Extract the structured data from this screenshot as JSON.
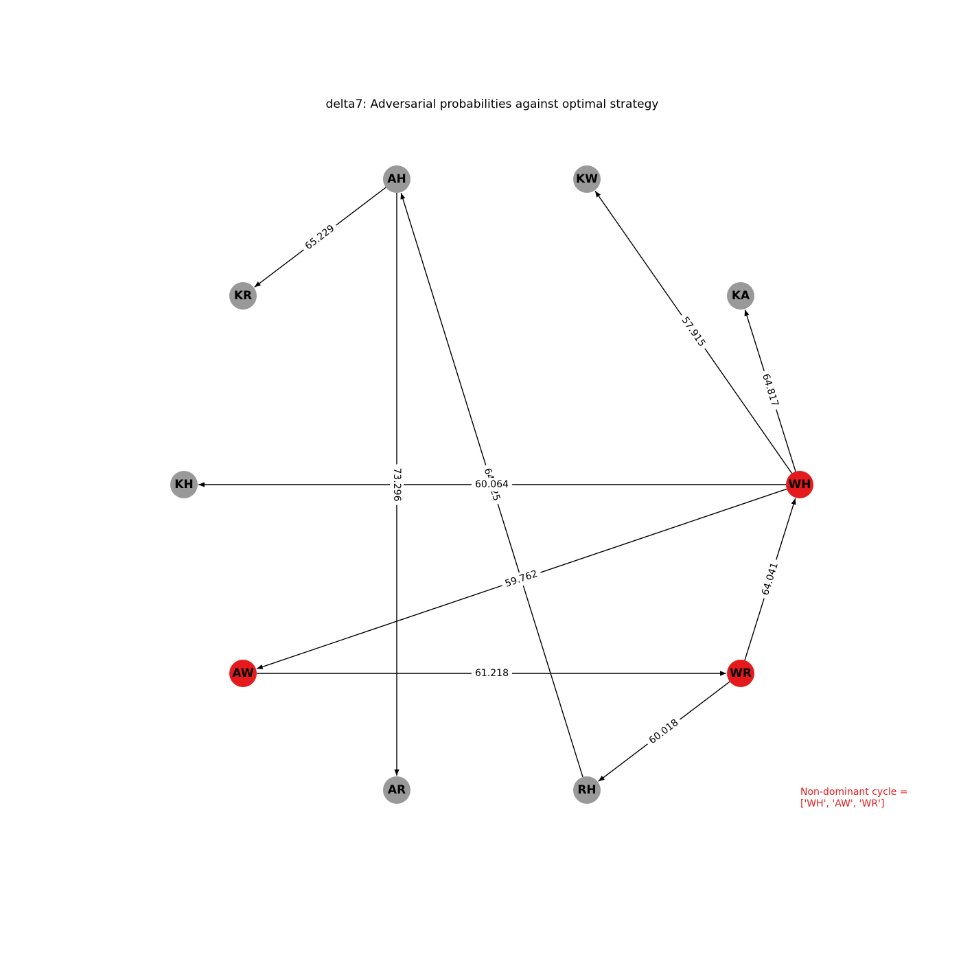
{
  "title": "delta7: Adversarial probabilities against optimal strategy",
  "annotation": {
    "line1": "Non-dominant cycle =",
    "line2": "['WH', 'AW', 'WR']"
  },
  "colors": {
    "default_node": "#999999",
    "cycle_node": "#e41a1c",
    "edge": "#000000",
    "annotation": "#e41a1c"
  },
  "nodes": [
    {
      "id": "AH",
      "in_cycle": false
    },
    {
      "id": "KW",
      "in_cycle": false
    },
    {
      "id": "KR",
      "in_cycle": false
    },
    {
      "id": "KA",
      "in_cycle": false
    },
    {
      "id": "KH",
      "in_cycle": false
    },
    {
      "id": "WH",
      "in_cycle": true
    },
    {
      "id": "AW",
      "in_cycle": true
    },
    {
      "id": "WR",
      "in_cycle": true
    },
    {
      "id": "AR",
      "in_cycle": false
    },
    {
      "id": "RH",
      "in_cycle": false
    }
  ],
  "edges": [
    {
      "source": "AH",
      "target": "KR",
      "label": "65.229"
    },
    {
      "source": "AH",
      "target": "AR",
      "label": "73.296"
    },
    {
      "source": "RH",
      "target": "AH",
      "label": "64.025"
    },
    {
      "source": "WH",
      "target": "KW",
      "label": "57.915"
    },
    {
      "source": "WH",
      "target": "KA",
      "label": "64.817"
    },
    {
      "source": "WH",
      "target": "KH",
      "label": "60.064"
    },
    {
      "source": "WH",
      "target": "AW",
      "label": "59.762"
    },
    {
      "source": "AW",
      "target": "WR",
      "label": "61.218"
    },
    {
      "source": "WR",
      "target": "WH",
      "label": "64.041"
    },
    {
      "source": "WR",
      "target": "RH",
      "label": "60.018"
    }
  ]
}
